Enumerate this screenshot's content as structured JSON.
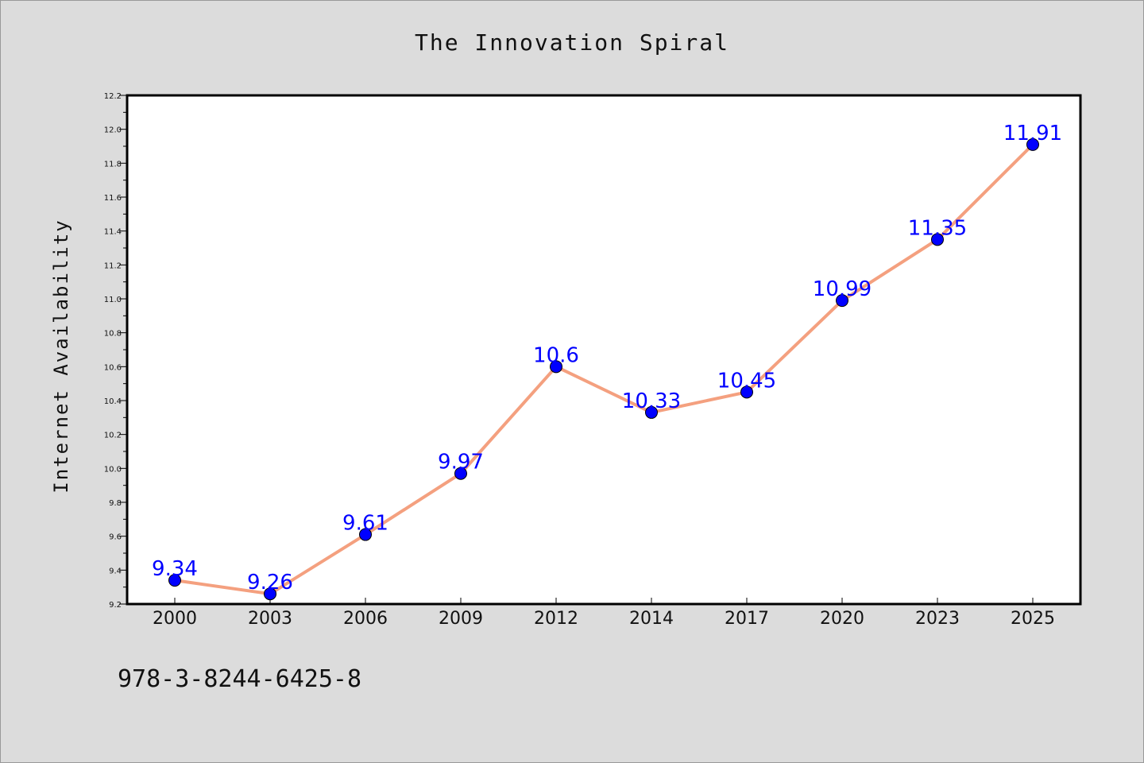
{
  "chart_data": {
    "type": "line",
    "title": "The Innovation Spiral",
    "xlabel": "",
    "ylabel": "Internet Availability",
    "categories": [
      "2000",
      "2003",
      "2006",
      "2009",
      "2012",
      "2014",
      "2017",
      "2020",
      "2023",
      "2025"
    ],
    "series": [
      {
        "values": [
          9.34,
          9.26,
          9.61,
          9.97,
          10.6,
          10.33,
          10.45,
          10.99,
          11.35,
          11.91
        ],
        "labels": [
          "9.34",
          "9.26",
          "9.61",
          "9.97",
          "10.6",
          "10.33",
          "10.45",
          "10.99",
          "11.35",
          "11.91"
        ]
      }
    ],
    "ylim": [
      9.2,
      12.2
    ],
    "yticks": [
      "9.2",
      "9.4",
      "9.6",
      "9.8",
      "10.0",
      "10.2",
      "10.4",
      "10.6",
      "10.8",
      "11.0",
      "11.2",
      "11.4",
      "11.6",
      "11.8",
      "12.0",
      "12.2"
    ],
    "grid": false,
    "colors": {
      "line": "#f4a07f",
      "marker": "#0000ff",
      "label": "#0000ff",
      "background": "#dcdcdc",
      "plot_background": "#ffffff"
    }
  },
  "footer": {
    "isbn": "978-3-8244-6425-8"
  }
}
